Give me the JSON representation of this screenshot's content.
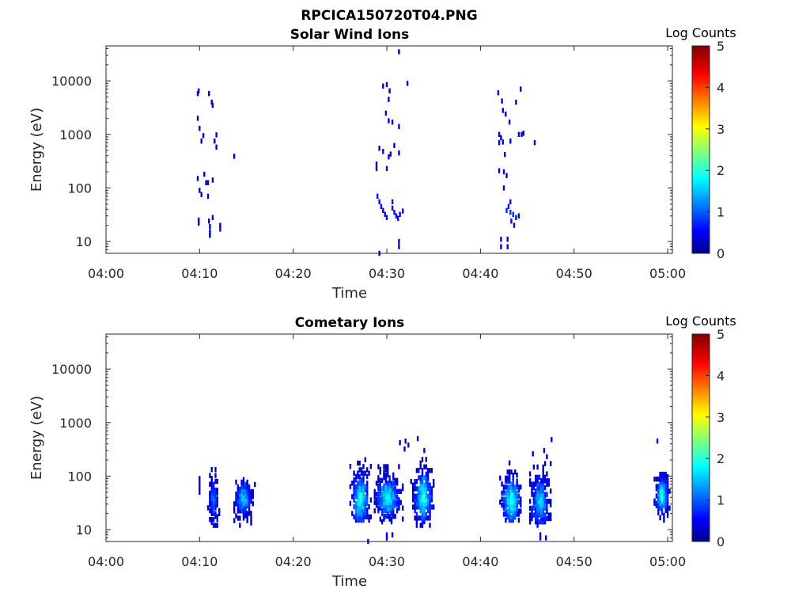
{
  "figure_title": "RPCICA150720T04.PNG",
  "colormap": {
    "name": "jet",
    "stops": [
      "#00008f",
      "#0000ff",
      "#00ffff",
      "#ffff00",
      "#ff0000",
      "#800000"
    ]
  },
  "chart_data": [
    {
      "type": "heatmap",
      "title": "Solar Wind Ions",
      "xlabel": "Time",
      "ylabel": "Energy (eV)",
      "x_ticks": [
        "04:00",
        "04:10",
        "04:20",
        "04:30",
        "04:40",
        "04:50",
        "05:00"
      ],
      "xlim_minutes": [
        0,
        60.5
      ],
      "y_scale": "log",
      "ylim": [
        6,
        45000
      ],
      "y_ticks": [
        "10",
        "100",
        "1000",
        "10000"
      ],
      "colorbar": {
        "title": "Log Counts",
        "range": [
          0,
          5
        ],
        "ticks": [
          "0",
          "1",
          "2",
          "3",
          "4",
          "5"
        ]
      },
      "pixels": [
        [
          9.9,
          6500,
          0.3
        ],
        [
          9.8,
          5800,
          0.3
        ],
        [
          11.0,
          5800,
          0.3
        ],
        [
          11.3,
          4000,
          0.3
        ],
        [
          11.4,
          3500,
          0.3
        ],
        [
          9.8,
          2000,
          0.3
        ],
        [
          10.0,
          1300,
          0.3
        ],
        [
          10.4,
          950,
          0.3
        ],
        [
          10.2,
          750,
          0.3
        ],
        [
          11.8,
          980,
          0.3
        ],
        [
          11.6,
          750,
          0.3
        ],
        [
          11.8,
          580,
          0.3
        ],
        [
          13.7,
          390,
          0.3
        ],
        [
          9.8,
          150,
          0.3
        ],
        [
          10.5,
          180,
          0.3
        ],
        [
          10.7,
          125,
          0.3
        ],
        [
          10.9,
          125,
          0.3
        ],
        [
          11.4,
          140,
          0.3
        ],
        [
          10.0,
          90,
          0.3
        ],
        [
          10.2,
          75,
          0.3
        ],
        [
          10.9,
          70,
          0.3
        ],
        [
          9.9,
          25,
          0.3
        ],
        [
          9.9,
          22,
          0.3
        ],
        [
          11.0,
          24,
          0.3
        ],
        [
          11.4,
          28,
          0.3
        ],
        [
          11.1,
          19,
          0.3
        ],
        [
          11.1,
          15,
          0.3
        ],
        [
          11.1,
          13,
          0.3
        ],
        [
          12.2,
          20,
          0.3
        ],
        [
          12.2,
          17,
          0.3
        ],
        [
          29.6,
          8000,
          0.3
        ],
        [
          30.0,
          8500,
          0.3
        ],
        [
          31.3,
          35000,
          0.3
        ],
        [
          32.2,
          9000,
          0.3
        ],
        [
          30.3,
          6500,
          0.3
        ],
        [
          30.2,
          4500,
          0.3
        ],
        [
          29.9,
          2500,
          0.3
        ],
        [
          30.2,
          1800,
          0.3
        ],
        [
          30.6,
          1700,
          0.3
        ],
        [
          31.3,
          1400,
          0.3
        ],
        [
          29.2,
          550,
          0.3
        ],
        [
          29.6,
          480,
          0.3
        ],
        [
          30.4,
          430,
          0.3
        ],
        [
          30.8,
          620,
          0.3
        ],
        [
          31.3,
          450,
          0.3
        ],
        [
          30.2,
          380,
          0.3
        ],
        [
          28.9,
          280,
          0.3
        ],
        [
          28.9,
          230,
          0.3
        ],
        [
          30.0,
          230,
          0.3
        ],
        [
          29.0,
          70,
          0.5
        ],
        [
          29.2,
          55,
          0.6
        ],
        [
          29.4,
          45,
          0.6
        ],
        [
          29.6,
          38,
          0.5
        ],
        [
          29.8,
          32,
          0.5
        ],
        [
          30.0,
          28,
          0.4
        ],
        [
          30.6,
          55,
          0.6
        ],
        [
          30.6,
          42,
          0.6
        ],
        [
          30.8,
          35,
          0.6
        ],
        [
          31.0,
          30,
          0.5
        ],
        [
          31.2,
          27,
          0.5
        ],
        [
          31.4,
          32,
          0.5
        ],
        [
          31.7,
          37,
          0.4
        ],
        [
          31.3,
          10,
          0.4
        ],
        [
          31.3,
          8,
          0.4
        ],
        [
          29.2,
          6,
          0.3
        ],
        [
          41.9,
          6000,
          0.3
        ],
        [
          42.3,
          4200,
          0.3
        ],
        [
          42.4,
          2800,
          0.3
        ],
        [
          42.7,
          2400,
          0.3
        ],
        [
          43.8,
          4000,
          0.3
        ],
        [
          44.3,
          7000,
          0.3
        ],
        [
          42.0,
          1000,
          0.3
        ],
        [
          42.2,
          870,
          0.3
        ],
        [
          42.0,
          700,
          0.3
        ],
        [
          42.4,
          720,
          0.3
        ],
        [
          43.1,
          1700,
          0.3
        ],
        [
          44.1,
          1000,
          0.3
        ],
        [
          44.4,
          1000,
          0.3
        ],
        [
          44.6,
          1050,
          0.3
        ],
        [
          45.8,
          700,
          0.3
        ],
        [
          43.2,
          750,
          0.3
        ],
        [
          42.6,
          420,
          0.3
        ],
        [
          42.0,
          210,
          0.3
        ],
        [
          42.5,
          200,
          0.3
        ],
        [
          42.8,
          170,
          0.3
        ],
        [
          42.5,
          100,
          0.3
        ],
        [
          43.2,
          55,
          0.6
        ],
        [
          43.0,
          45,
          0.7
        ],
        [
          42.8,
          38,
          0.7
        ],
        [
          43.2,
          35,
          0.8
        ],
        [
          43.5,
          32,
          0.7
        ],
        [
          43.8,
          28,
          0.6
        ],
        [
          44.1,
          30,
          0.5
        ],
        [
          43.3,
          24,
          0.6
        ],
        [
          43.6,
          20,
          0.5
        ],
        [
          42.2,
          11,
          0.4
        ],
        [
          42.2,
          8,
          0.4
        ],
        [
          42.9,
          11,
          0.4
        ],
        [
          42.9,
          8,
          0.4
        ]
      ]
    },
    {
      "type": "heatmap",
      "title": "Cometary Ions",
      "xlabel": "Time",
      "ylabel": "Energy (eV)",
      "x_ticks": [
        "04:00",
        "04:10",
        "04:20",
        "04:30",
        "04:40",
        "04:50",
        "05:00"
      ],
      "xlim_minutes": [
        0,
        60.5
      ],
      "y_scale": "log",
      "ylim": [
        6,
        45000
      ],
      "y_ticks": [
        "10",
        "100",
        "1000",
        "10000"
      ],
      "colorbar": {
        "title": "Log Counts",
        "range": [
          0,
          5
        ],
        "ticks": [
          "0",
          "1",
          "2",
          "3",
          "4",
          "5"
        ]
      },
      "blobs": [
        {
          "t": [
            10.8,
            12.0
          ],
          "e": [
            12,
            150
          ],
          "peak_t": 11.4,
          "peak_e": 35,
          "peak": 1.3
        },
        {
          "t": [
            13.6,
            15.8
          ],
          "e": [
            12,
            95
          ],
          "peak_t": 14.6,
          "peak_e": 40,
          "peak": 1.7
        },
        {
          "t": [
            25.8,
            28.2
          ],
          "e": [
            15,
            270
          ],
          "peak_t": 27.1,
          "peak_e": 38,
          "peak": 2.1
        },
        {
          "t": [
            28.6,
            31.8
          ],
          "e": [
            14,
            150
          ],
          "peak_t": 30.0,
          "peak_e": 40,
          "peak": 2.0
        },
        {
          "t": [
            32.5,
            35.0
          ],
          "e": [
            12,
            280
          ],
          "peak_t": 33.8,
          "peak_e": 40,
          "peak": 2.1
        },
        {
          "t": [
            42.0,
            44.4
          ],
          "e": [
            15,
            200
          ],
          "peak_t": 43.2,
          "peak_e": 35,
          "peak": 2.2
        },
        {
          "t": [
            45.0,
            47.6
          ],
          "e": [
            12,
            230
          ],
          "peak_t": 46.3,
          "peak_e": 35,
          "peak": 1.6
        },
        {
          "t": [
            58.5,
            60.3
          ],
          "e": [
            15,
            120
          ],
          "peak_t": 59.3,
          "peak_e": 45,
          "peak": 2.1
        }
      ],
      "pixels": [
        [
          10.0,
          90,
          0.3
        ],
        [
          10.0,
          75,
          0.3
        ],
        [
          10.0,
          60,
          0.3
        ],
        [
          10.0,
          50,
          0.3
        ],
        [
          31.4,
          420,
          0.3
        ],
        [
          32.0,
          450,
          0.3
        ],
        [
          32.3,
          380,
          0.3
        ],
        [
          33.3,
          500,
          0.3
        ],
        [
          47.6,
          480,
          0.3
        ],
        [
          46.8,
          300,
          0.3
        ],
        [
          45.6,
          260,
          0.3
        ],
        [
          58.9,
          450,
          0.3
        ],
        [
          30.0,
          8,
          0.4
        ],
        [
          30.0,
          7,
          0.4
        ],
        [
          30.6,
          8,
          0.4
        ],
        [
          46.4,
          8,
          0.4
        ],
        [
          46.4,
          7,
          0.4
        ],
        [
          47.0,
          7,
          0.4
        ],
        [
          34.0,
          300,
          0.3
        ],
        [
          31.9,
          320,
          0.3
        ],
        [
          28.0,
          6,
          0.3
        ]
      ]
    }
  ]
}
